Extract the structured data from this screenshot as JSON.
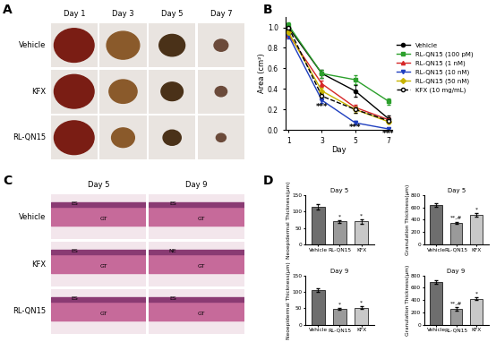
{
  "panel_labels": [
    "A",
    "B",
    "C",
    "D"
  ],
  "photos": {
    "columns": [
      "Day 1",
      "Day 3",
      "Day 5",
      "Day 7"
    ],
    "rows": [
      "Vehicle",
      "KFX",
      "RL-QN15"
    ]
  },
  "histology": {
    "columns": [
      "Day 5",
      "Day 9"
    ],
    "rows": [
      "Vehicle",
      "KFX",
      "RL-QN15"
    ],
    "tissue_labels": [
      [
        [
          "ES",
          "GT"
        ],
        [
          "ES",
          "GT"
        ]
      ],
      [
        [
          "ES",
          "GT"
        ],
        [
          "NE",
          "GT"
        ]
      ],
      [
        [
          "ES",
          "GT"
        ],
        [
          "ES",
          "GT"
        ]
      ]
    ]
  },
  "chart_data": [
    {
      "type": "line",
      "xlabel": "Day",
      "ylabel": "Area (cm²)",
      "x": [
        1,
        3,
        5,
        7
      ],
      "xlim": [
        0.8,
        7.2
      ],
      "xticks": [
        1,
        3,
        5,
        7
      ],
      "ylim": [
        0,
        1.1
      ],
      "yticks": [
        {
          "value": 0,
          "label": "0.0"
        },
        {
          "value": 0.2,
          "label": "0.2"
        },
        {
          "value": 0.4,
          "label": "0.4"
        },
        {
          "value": 0.6,
          "label": "0.6"
        },
        {
          "value": 0.8,
          "label": "0.8"
        },
        {
          "value": 1.0,
          "label": "1.0"
        }
      ],
      "legend": "right",
      "series": [
        {
          "name": "Vehicle",
          "color": "#000000",
          "marker": "circle",
          "line_style": "solid",
          "values": [
            1.0,
            0.55,
            0.38,
            0.11
          ],
          "errors": [
            0.03,
            0.04,
            0.06,
            0.03
          ]
        },
        {
          "name": "RL-QN15 (100 pM)",
          "color": "#2ca02c",
          "marker": "square",
          "line_style": "solid",
          "values": [
            1.02,
            0.55,
            0.49,
            0.28
          ],
          "errors": [
            0.03,
            0.04,
            0.04,
            0.03
          ]
        },
        {
          "name": "RL-QN15 (1 nM)",
          "color": "#d62728",
          "marker": "triangle",
          "line_style": "solid",
          "values": [
            0.93,
            0.45,
            0.22,
            0.1
          ],
          "errors": [
            0.03,
            0.03,
            0.03,
            0.02
          ]
        },
        {
          "name": "RL-QN15 (10 nM)",
          "color": "#1f3fbf",
          "marker": "triangle_down",
          "line_style": "solid",
          "values": [
            0.92,
            0.29,
            0.07,
            0.01
          ],
          "errors": [
            0.03,
            0.03,
            0.02,
            0.01
          ]
        },
        {
          "name": "RL-QN15 (50 nM)",
          "color": "#c8b400",
          "marker": "diamond",
          "line_style": "solid",
          "values": [
            0.95,
            0.38,
            0.2,
            0.08
          ],
          "errors": [
            0.03,
            0.03,
            0.03,
            0.02
          ]
        },
        {
          "name": "KFX (10 mg/mL)",
          "color": "#000000",
          "marker": "circle",
          "line_style": "dashed",
          "values": [
            1.0,
            0.33,
            0.2,
            0.09
          ],
          "errors": [
            0.03,
            0.03,
            0.03,
            0.02
          ]
        }
      ],
      "annotations": [
        {
          "x": 3,
          "y": 0.22,
          "text": "***"
        },
        {
          "x": 5,
          "y": 0.02,
          "text": "***"
        },
        {
          "x": 7,
          "y": -0.04,
          "text": "***"
        }
      ]
    },
    {
      "type": "bar",
      "title": "Day 5",
      "ylabel": "Neoepidermal Thickness(μm)",
      "categories": [
        "Vehicle",
        "RL-QN15",
        "KFX"
      ],
      "values": [
        115,
        70,
        70
      ],
      "errors": [
        8,
        4,
        7
      ],
      "annotations": [
        null,
        "*",
        "*"
      ],
      "colors": [
        "#6e6e6e",
        "#9a9a9a",
        "#c8c8c8"
      ],
      "ylim": [
        0,
        150
      ],
      "yticks": [
        0,
        50,
        100,
        150
      ]
    },
    {
      "type": "bar",
      "title": "Day 5",
      "ylabel": "Granulation Thickness(μm)",
      "categories": [
        "Vehicle",
        "RL-QN15",
        "KFX"
      ],
      "values": [
        640,
        350,
        480
      ],
      "errors": [
        30,
        20,
        25
      ],
      "annotations": [
        null,
        "**,#",
        "*"
      ],
      "colors": [
        "#6e6e6e",
        "#9a9a9a",
        "#c8c8c8"
      ],
      "ylim": [
        0,
        800
      ],
      "yticks": [
        0,
        200,
        400,
        600,
        800
      ]
    },
    {
      "type": "bar",
      "title": "Day 9",
      "ylabel": "Neoepidermal Thickness(μm)",
      "categories": [
        "Vehicle",
        "RL-QN15",
        "KFX"
      ],
      "values": [
        105,
        48,
        52
      ],
      "errors": [
        6,
        3,
        4
      ],
      "annotations": [
        null,
        "*",
        "*"
      ],
      "colors": [
        "#6e6e6e",
        "#9a9a9a",
        "#c8c8c8"
      ],
      "ylim": [
        0,
        150
      ],
      "yticks": [
        0,
        50,
        100,
        150
      ]
    },
    {
      "type": "bar",
      "title": "Day 9",
      "ylabel": "Granulation Thickness(μm)",
      "categories": [
        "Vehicle",
        "RL-QN15",
        "KFX"
      ],
      "values": [
        690,
        260,
        420
      ],
      "errors": [
        30,
        25,
        20
      ],
      "annotations": [
        null,
        "**,#",
        "*"
      ],
      "colors": [
        "#6e6e6e",
        "#9a9a9a",
        "#c8c8c8"
      ],
      "ylim": [
        0,
        800
      ],
      "yticks": [
        0,
        200,
        400,
        600,
        800
      ]
    }
  ]
}
